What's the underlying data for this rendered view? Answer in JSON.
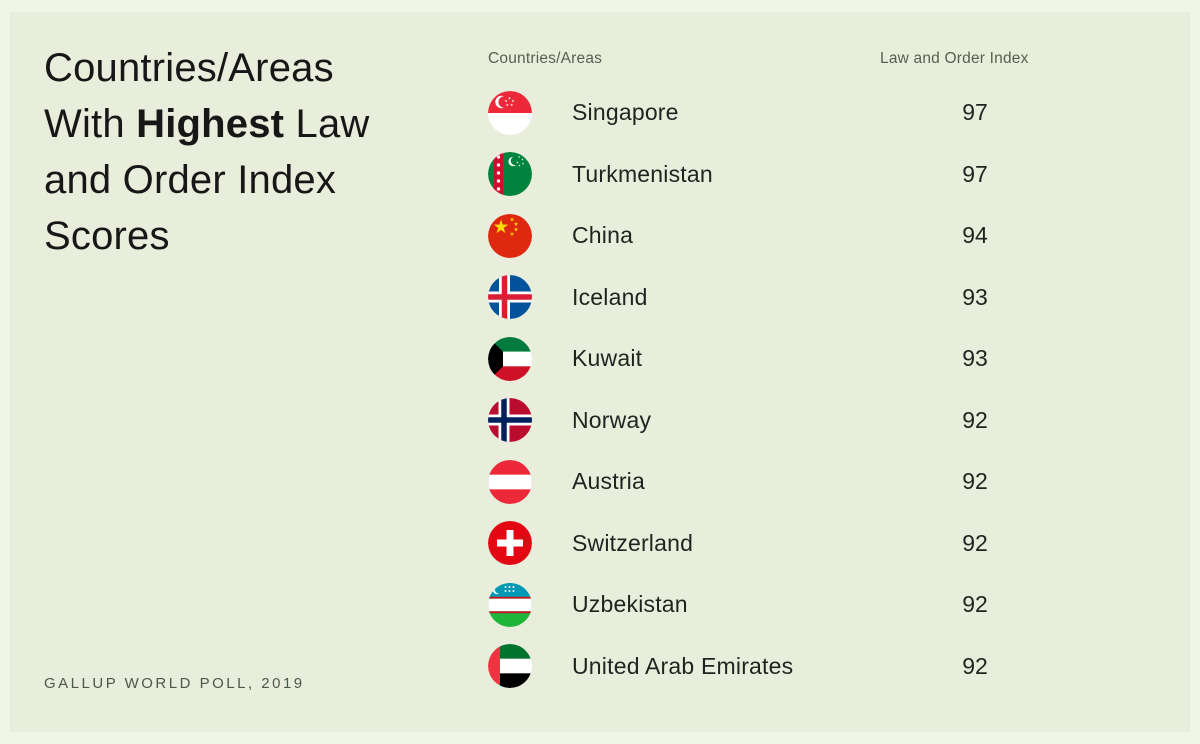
{
  "title": {
    "pre": "Countries/Areas\nWith ",
    "bold": "Highest",
    "post": " Law\nand Order Index\nScores"
  },
  "source": "GALLUP WORLD POLL, 2019",
  "table": {
    "headers": {
      "countries": "Countries/Areas",
      "index": "Law and Order Index"
    },
    "rows": [
      {
        "country": "Singapore",
        "score": "97",
        "flag": "singapore"
      },
      {
        "country": "Turkmenistan",
        "score": "97",
        "flag": "turkmenistan"
      },
      {
        "country": "China",
        "score": "94",
        "flag": "china"
      },
      {
        "country": "Iceland",
        "score": "93",
        "flag": "iceland"
      },
      {
        "country": "Kuwait",
        "score": "93",
        "flag": "kuwait"
      },
      {
        "country": "Norway",
        "score": "92",
        "flag": "norway"
      },
      {
        "country": "Austria",
        "score": "92",
        "flag": "austria"
      },
      {
        "country": "Switzerland",
        "score": "92",
        "flag": "switzerland"
      },
      {
        "country": "Uzbekistan",
        "score": "92",
        "flag": "uzbekistan"
      },
      {
        "country": "United Arab Emirates",
        "score": "92",
        "flag": "uae"
      }
    ]
  },
  "colors": {
    "background": "#e8eedb",
    "title_text": "#171717",
    "muted_text": "#55614f",
    "row_text": "#1f2420"
  },
  "chart_data": {
    "type": "table",
    "title": "Countries/Areas With Highest Law and Order Index Scores",
    "columns": [
      "Countries/Areas",
      "Law and Order Index"
    ],
    "rows": [
      [
        "Singapore",
        97
      ],
      [
        "Turkmenistan",
        97
      ],
      [
        "China",
        94
      ],
      [
        "Iceland",
        93
      ],
      [
        "Kuwait",
        93
      ],
      [
        "Norway",
        92
      ],
      [
        "Austria",
        92
      ],
      [
        "Switzerland",
        92
      ],
      [
        "Uzbekistan",
        92
      ],
      [
        "United Arab Emirates",
        92
      ]
    ],
    "source": "GALLUP WORLD POLL, 2019",
    "layout": {
      "legend": false,
      "grid": false
    }
  }
}
